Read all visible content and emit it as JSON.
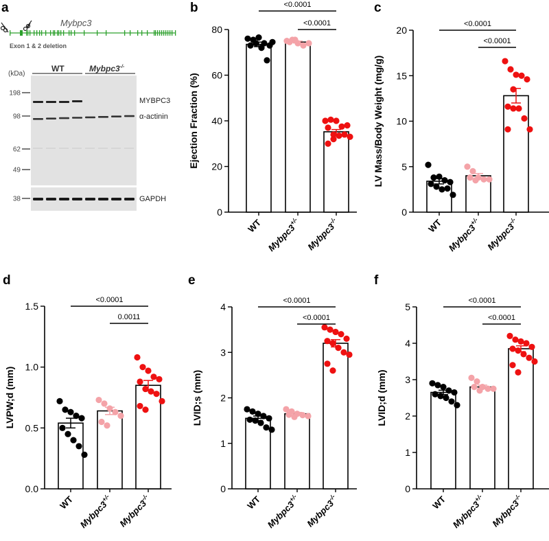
{
  "panel_a": {
    "letter": "a",
    "gene": "Mybpc3",
    "deletion_label": "Exon 1 & 2 deletion",
    "kda_label": "(kDa)",
    "group_wt": "WT",
    "group_ko": "Mybpc3",
    "group_ko_sup": "-/-",
    "markers": [
      "198",
      "98",
      "62",
      "49",
      "38"
    ],
    "bands": [
      "MYBPC3",
      "α-actinin",
      "GAPDH"
    ],
    "exon_color": "#2ca02c"
  },
  "colors": {
    "wt": "#000000",
    "het": "#f4a3a8",
    "ko": "#ee1111"
  },
  "chart_data": [
    {
      "letter": "b",
      "type": "bar",
      "ylabel": "Ejection Fraction (%)",
      "categories": [
        {
          "base": "WT",
          "sup": ""
        },
        {
          "base": "Mybpc3",
          "sup": "+/-"
        },
        {
          "base": "Mybpc3",
          "sup": "-/-"
        }
      ],
      "ylim": [
        0,
        80
      ],
      "yticks": [
        "0",
        "20",
        "40",
        "60",
        "80"
      ],
      "means": [
        73.5,
        74.5,
        35.2
      ],
      "sem": [
        1.0,
        0.4,
        1.0
      ],
      "points": [
        [
          76,
          75.5,
          76.5,
          74,
          73,
          73,
          74,
          72,
          66.5,
          74.5
        ],
        [
          75,
          75.5,
          74,
          73,
          74,
          74.5,
          75.5
        ],
        [
          40,
          40.5,
          40,
          37.5,
          38,
          37,
          34,
          33.5,
          34,
          33,
          30,
          32
        ]
      ],
      "comparisons": [
        {
          "from": 0,
          "to": 2,
          "label": "<0.0001",
          "level": 1
        },
        {
          "from": 1,
          "to": 2,
          "label": "<0.0001",
          "level": 0
        }
      ]
    },
    {
      "letter": "c",
      "type": "bar",
      "ylabel": "LV Mass/Body Weight (mg/g)",
      "categories": [
        {
          "base": "WT",
          "sup": ""
        },
        {
          "base": "Mybpc3",
          "sup": "+/-"
        },
        {
          "base": "Mybpc3",
          "sup": "-/-"
        }
      ],
      "ylim": [
        0,
        20
      ],
      "yticks": [
        "0",
        "5",
        "10",
        "15",
        "20"
      ],
      "means": [
        3.4,
        4.0,
        12.8
      ],
      "sem": [
        0.3,
        0.25,
        0.8
      ],
      "points": [
        [
          5.2,
          3.8,
          3.9,
          3.5,
          3.3,
          3.1,
          2.8,
          2.5,
          2.6,
          1.9
        ],
        [
          5.0,
          4.5,
          3.8,
          3.6,
          3.6,
          3.8,
          3.5
        ],
        [
          16.6,
          15.7,
          15.1,
          15.0,
          14.6,
          11.6,
          11.4,
          11.4,
          10.3,
          9.1,
          9.1,
          13.5
        ]
      ],
      "comparisons": [
        {
          "from": 0,
          "to": 2,
          "label": "<0.0001",
          "level": 1
        },
        {
          "from": 1,
          "to": 2,
          "label": "<0.0001",
          "level": 0
        }
      ]
    },
    {
      "letter": "d",
      "type": "bar",
      "ylabel": "LVPW;d (mm)",
      "categories": [
        {
          "base": "WT",
          "sup": ""
        },
        {
          "base": "Mybpc3",
          "sup": "+/-"
        },
        {
          "base": "Mybpc3",
          "sup": "-/-"
        }
      ],
      "ylim": [
        0,
        1.5
      ],
      "yticks": [
        "0.0",
        "0.5",
        "1.0",
        "1.5"
      ],
      "means": [
        0.54,
        0.64,
        0.85
      ],
      "sem": [
        0.04,
        0.03,
        0.04
      ],
      "points": [
        [
          0.72,
          0.65,
          0.63,
          0.6,
          0.58,
          0.5,
          0.45,
          0.4,
          0.35,
          0.28
        ],
        [
          0.73,
          0.7,
          0.66,
          0.63,
          0.6,
          0.55,
          0.52
        ],
        [
          1.08,
          1.0,
          0.97,
          0.92,
          0.9,
          0.88,
          0.82,
          0.8,
          0.78,
          0.72,
          0.68,
          0.65
        ]
      ],
      "comparisons": [
        {
          "from": 0,
          "to": 2,
          "label": "<0.0001",
          "level": 1
        },
        {
          "from": 1,
          "to": 2,
          "label": "0.0011",
          "level": 0
        }
      ]
    },
    {
      "letter": "e",
      "type": "bar",
      "ylabel": "LVID;s (mm)",
      "categories": [
        {
          "base": "WT",
          "sup": ""
        },
        {
          "base": "Mybpc3",
          "sup": "+/-"
        },
        {
          "base": "Mybpc3",
          "sup": "-/-"
        }
      ],
      "ylim": [
        0,
        4
      ],
      "yticks": [
        "0",
        "1",
        "2",
        "3",
        "4"
      ],
      "means": [
        1.55,
        1.65,
        3.2
      ],
      "sem": [
        0.05,
        0.03,
        0.08
      ],
      "points": [
        [
          1.75,
          1.7,
          1.65,
          1.6,
          1.55,
          1.52,
          1.5,
          1.45,
          1.35,
          1.3
        ],
        [
          1.75,
          1.7,
          1.65,
          1.62,
          1.6,
          1.63,
          1.58
        ],
        [
          3.55,
          3.5,
          3.45,
          3.4,
          3.3,
          3.25,
          3.2,
          3.1,
          3.0,
          2.95,
          2.75,
          2.6
        ]
      ],
      "comparisons": [
        {
          "from": 0,
          "to": 2,
          "label": "<0.0001",
          "level": 1
        },
        {
          "from": 1,
          "to": 2,
          "label": "<0.0001",
          "level": 0
        }
      ]
    },
    {
      "letter": "f",
      "type": "bar",
      "ylabel": "LVID;d (mm)",
      "categories": [
        {
          "base": "WT",
          "sup": ""
        },
        {
          "base": "Mybpc3",
          "sup": "+/-"
        },
        {
          "base": "Mybpc3",
          "sup": "-/-"
        }
      ],
      "ylim": [
        0,
        5
      ],
      "yticks": [
        "0",
        "1",
        "2",
        "3",
        "4",
        "5"
      ],
      "means": [
        2.65,
        2.8,
        3.85
      ],
      "sem": [
        0.06,
        0.05,
        0.08
      ],
      "points": [
        [
          2.9,
          2.85,
          2.8,
          2.7,
          2.65,
          2.6,
          2.55,
          2.5,
          2.4,
          2.3
        ],
        [
          3.05,
          2.95,
          2.8,
          2.75,
          2.75,
          2.8,
          2.7
        ],
        [
          4.2,
          4.1,
          4.05,
          4.0,
          3.9,
          3.85,
          3.8,
          3.7,
          3.6,
          3.5,
          3.4,
          3.2
        ]
      ],
      "comparisons": [
        {
          "from": 0,
          "to": 2,
          "label": "<0.0001",
          "level": 1
        },
        {
          "from": 1,
          "to": 2,
          "label": "<0.0001",
          "level": 0
        }
      ]
    }
  ]
}
